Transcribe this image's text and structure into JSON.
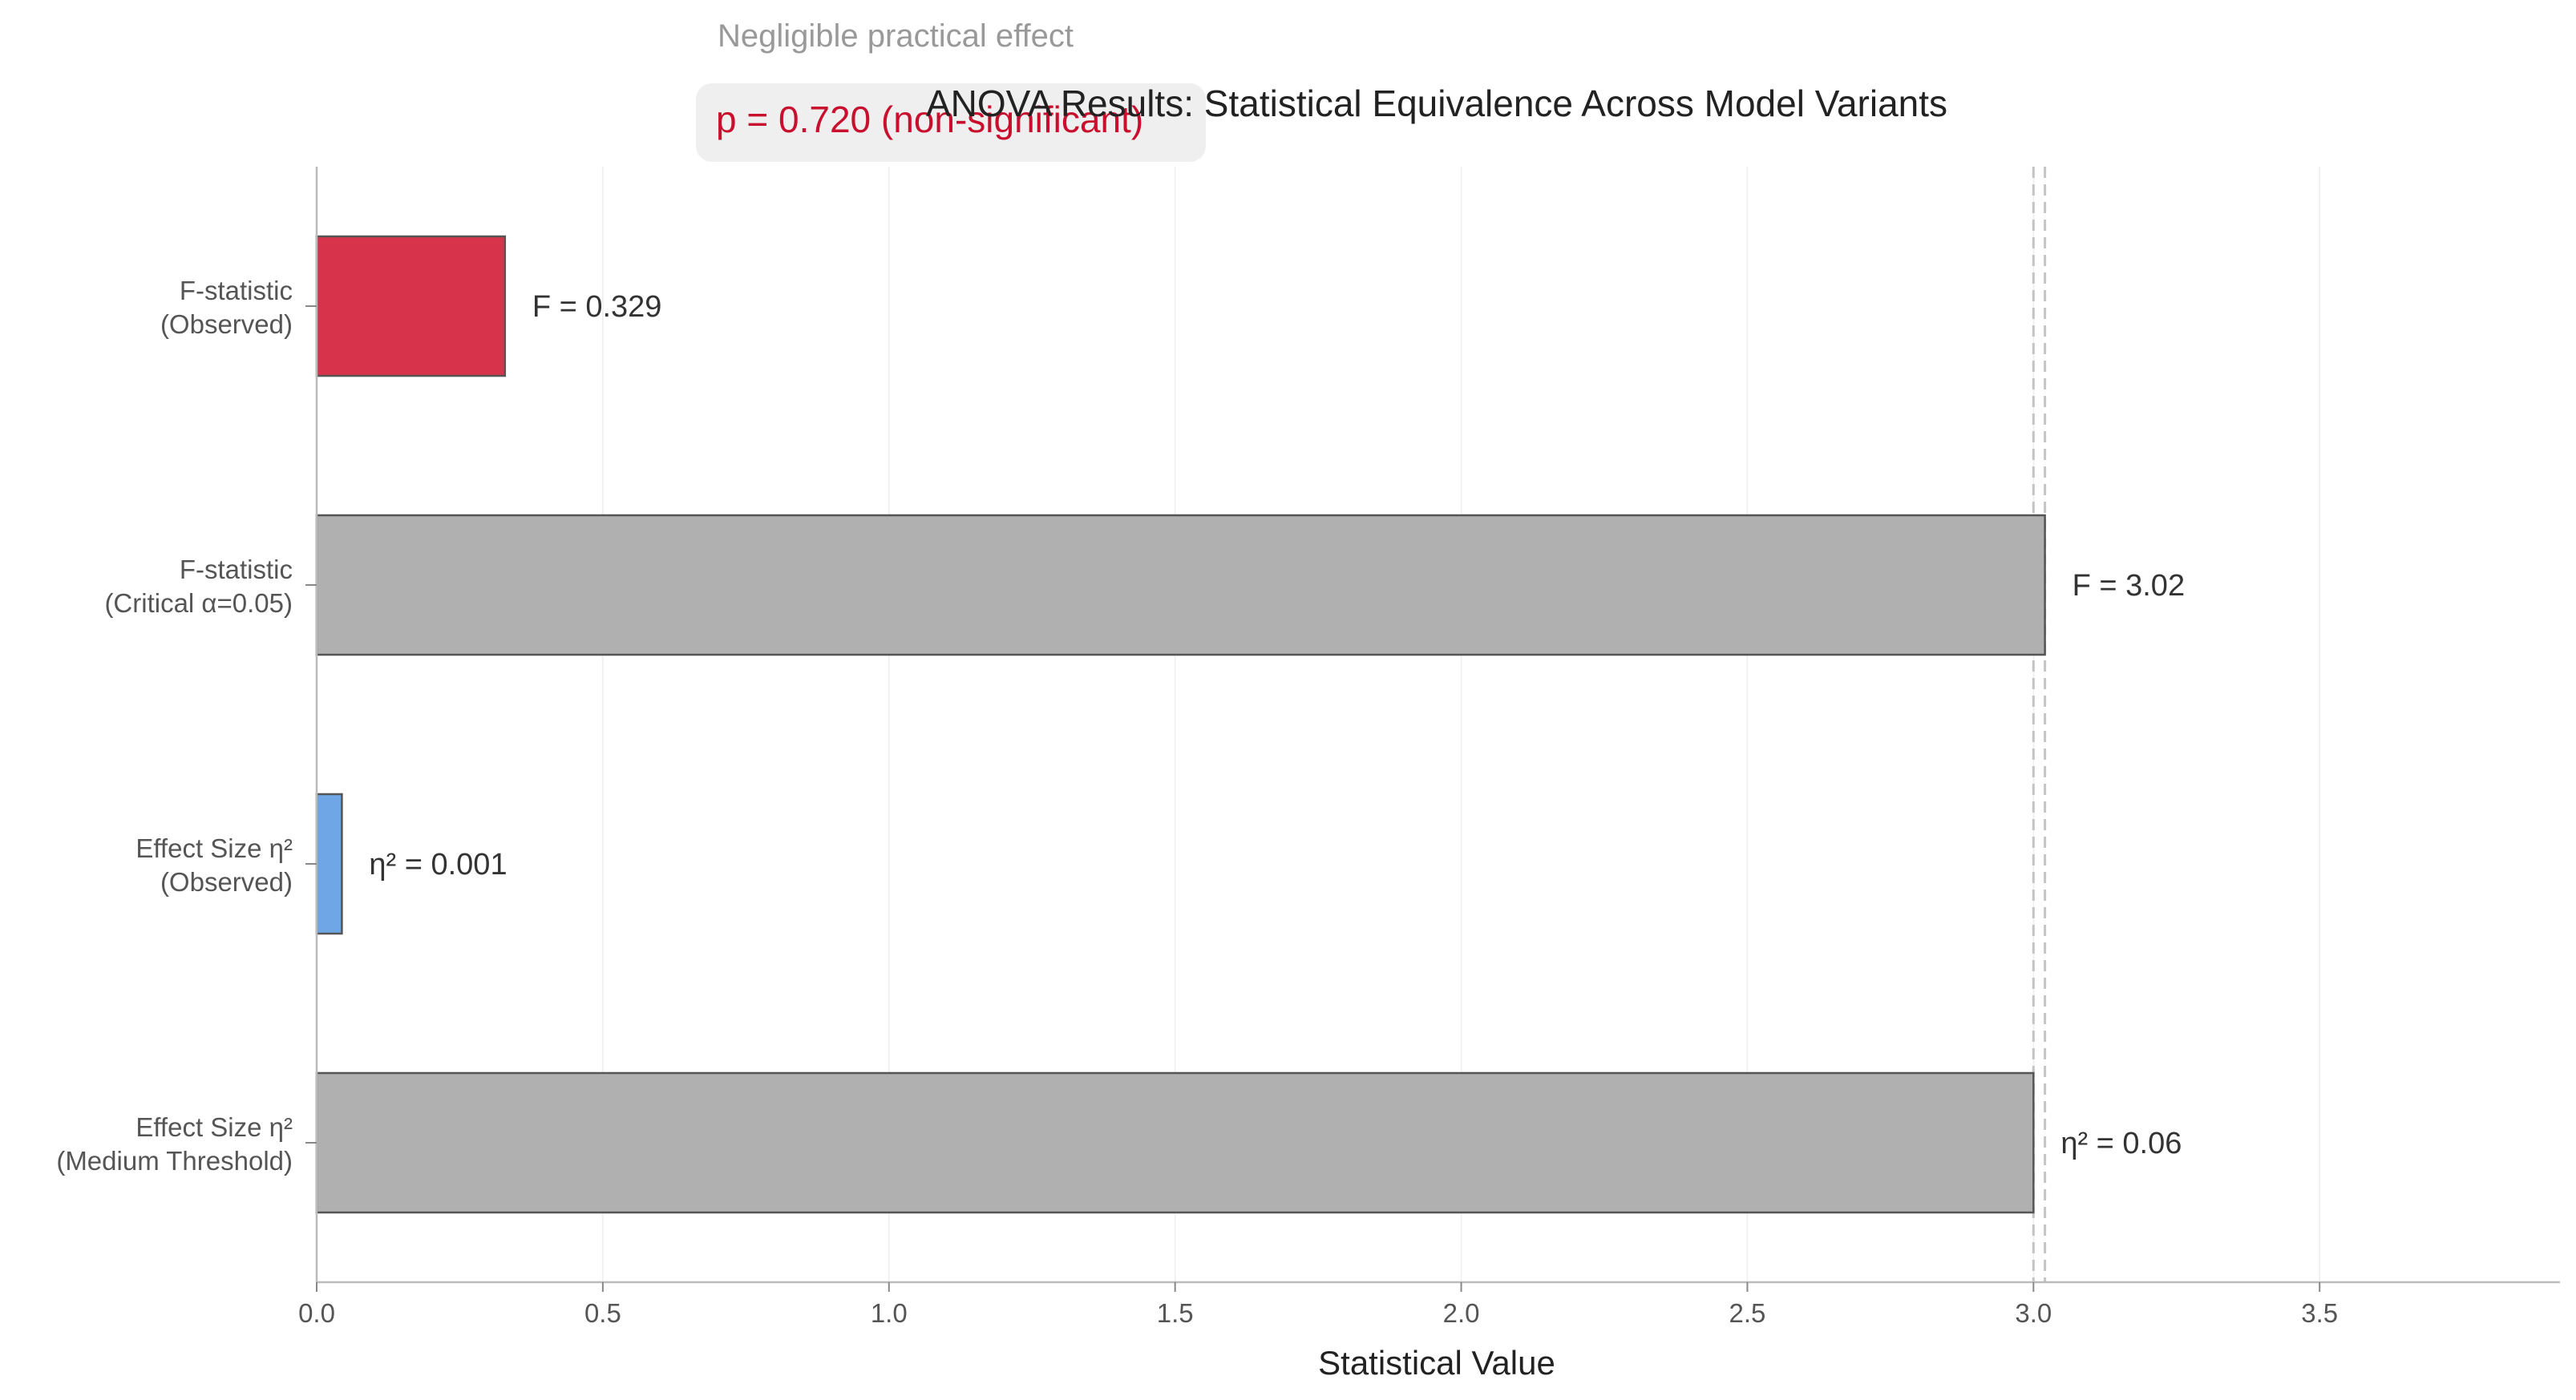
{
  "chart_data": {
    "type": "bar",
    "orientation": "horizontal",
    "title": "ANOVA Results: Statistical Equivalence Across Model Variants",
    "annotations": {
      "effect_note": "Negligible practical effect",
      "p_value": "p = 0.720 (non-significant)"
    },
    "xlabel": "Statistical Value",
    "ylabel": "",
    "xlim": [
      0,
      3.92
    ],
    "xticks": [
      0.0,
      0.5,
      1.0,
      1.5,
      2.0,
      2.5,
      3.0,
      3.5
    ],
    "xtick_labels": [
      "0.0",
      "0.5",
      "1.0",
      "1.5",
      "2.0",
      "2.5",
      "3.0",
      "3.5"
    ],
    "grid": true,
    "categories": [
      [
        "F-statistic",
        "(Observed)"
      ],
      [
        "F-statistic",
        "(Critical α=0.05)"
      ],
      [
        "Effect Size η²",
        "(Observed)"
      ],
      [
        "Effect Size η²",
        "(Medium Threshold)"
      ]
    ],
    "values": [
      0.329,
      3.02,
      0.044,
      3.0
    ],
    "value_labels": [
      "F = 0.329",
      "F = 3.02",
      "η² = 0.001",
      "η² = 0.06"
    ],
    "bar_colors": [
      "#d7334a",
      "#b0b0b0",
      "#6ea6e6",
      "#b0b0b0"
    ],
    "reference_lines": [
      3.0,
      3.02
    ]
  }
}
